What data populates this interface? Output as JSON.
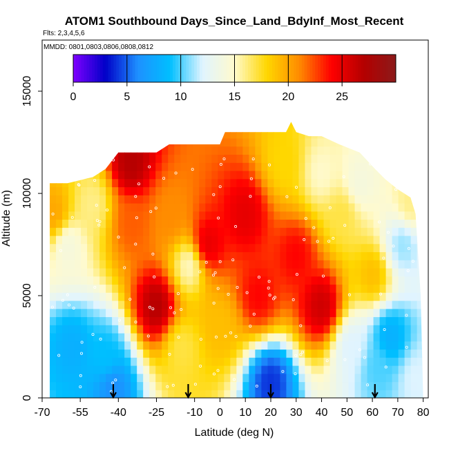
{
  "chart_data": {
    "type": "heatmap",
    "title": "ATOM1 Southbound Days_Since_Land_BdyInf_Most_Recent",
    "flights_note": "Flts: 2,3,4,5,6",
    "dates_note": "MMDD: 0801,0803,0806,0808,0812",
    "xlabel": "Latitude (deg N)",
    "ylabel": "Altitude (m)",
    "xlim": [
      -70,
      82
    ],
    "ylim": [
      0,
      17500
    ],
    "x_ticks": [
      -70,
      -55,
      -40,
      -25,
      -10,
      0,
      10,
      20,
      30,
      40,
      50,
      60,
      70,
      80
    ],
    "y_ticks": [
      0,
      5000,
      10000,
      15000
    ],
    "colorbar": {
      "range": [
        0,
        30
      ],
      "ticks": [
        0,
        5,
        10,
        15,
        20,
        25
      ],
      "colors": [
        "#7f00ff",
        "#0000c8",
        "#1e90ff",
        "#00bfff",
        "#e0f4ff",
        "#fffacd",
        "#ffd700",
        "#ff8c00",
        "#ff0000",
        "#b40000",
        "#8b1a1a"
      ]
    },
    "profile_markers_lat": [
      -42,
      -12.5,
      20,
      61
    ],
    "envelope": [
      [
        -67,
        10500
      ],
      [
        -60,
        10500
      ],
      [
        -50,
        10800
      ],
      [
        -45,
        11200
      ],
      [
        -40,
        12000
      ],
      [
        -25,
        12000
      ],
      [
        -20,
        12400
      ],
      [
        -10,
        12400
      ],
      [
        0,
        12400
      ],
      [
        2,
        13000
      ],
      [
        14,
        13000
      ],
      [
        26,
        13000
      ],
      [
        28,
        13500
      ],
      [
        30,
        13000
      ],
      [
        35,
        12800
      ],
      [
        40,
        12800
      ],
      [
        47,
        12400
      ],
      [
        55,
        12000
      ],
      [
        61,
        11200
      ],
      [
        65,
        10700
      ],
      [
        70,
        10200
      ],
      [
        75,
        9800
      ],
      [
        77,
        9000
      ],
      [
        79,
        5000
      ],
      [
        80,
        0
      ]
    ],
    "field_anchors": [
      {
        "lat": -65,
        "alt": 9000,
        "value": 20
      },
      {
        "lat": -60,
        "alt": 7500,
        "value": 14
      },
      {
        "lat": -58,
        "alt": 2500,
        "value": 8
      },
      {
        "lat": -50,
        "alt": 9500,
        "value": 16
      },
      {
        "lat": -45,
        "alt": 2000,
        "value": 9
      },
      {
        "lat": -42,
        "alt": 500,
        "value": 6
      },
      {
        "lat": -35,
        "alt": 8500,
        "value": 22
      },
      {
        "lat": -35,
        "alt": 11500,
        "value": 27
      },
      {
        "lat": -25,
        "alt": 4500,
        "value": 27
      },
      {
        "lat": -20,
        "alt": 9000,
        "value": 21
      },
      {
        "lat": -15,
        "alt": 2500,
        "value": 17
      },
      {
        "lat": -12,
        "alt": 6500,
        "value": 15
      },
      {
        "lat": -5,
        "alt": 7500,
        "value": 25
      },
      {
        "lat": 0,
        "alt": 3500,
        "value": 19
      },
      {
        "lat": 10,
        "alt": 9000,
        "value": 25
      },
      {
        "lat": 15,
        "alt": 5000,
        "value": 24
      },
      {
        "lat": 20,
        "alt": 800,
        "value": 4
      },
      {
        "lat": 25,
        "alt": 11500,
        "value": 18
      },
      {
        "lat": 30,
        "alt": 7000,
        "value": 24
      },
      {
        "lat": 40,
        "alt": 4500,
        "value": 26
      },
      {
        "lat": 40,
        "alt": 11000,
        "value": 15
      },
      {
        "lat": 48,
        "alt": 9000,
        "value": 17
      },
      {
        "lat": 52,
        "alt": 2500,
        "value": 12
      },
      {
        "lat": 55,
        "alt": 10500,
        "value": 14
      },
      {
        "lat": 60,
        "alt": 6000,
        "value": 19
      },
      {
        "lat": 62,
        "alt": 1500,
        "value": 10
      },
      {
        "lat": 67,
        "alt": 3000,
        "value": 8
      },
      {
        "lat": 72,
        "alt": 7500,
        "value": 11
      },
      {
        "lat": 75,
        "alt": 9500,
        "value": 16
      },
      {
        "lat": 77,
        "alt": 1000,
        "value": 12
      }
    ]
  }
}
